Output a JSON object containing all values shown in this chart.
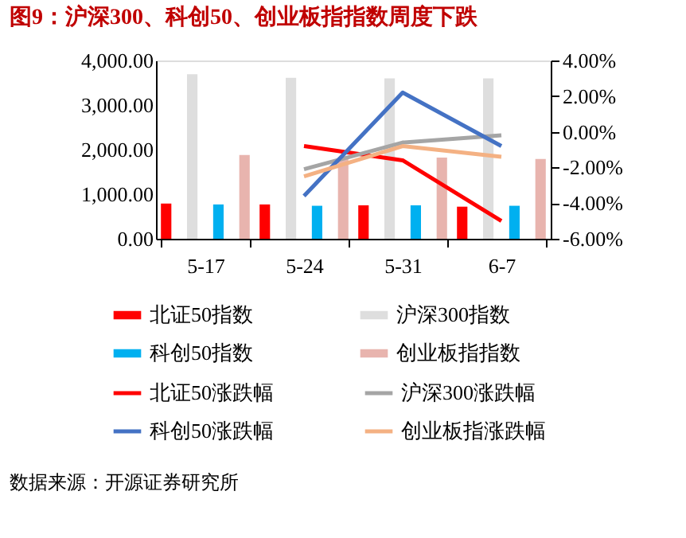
{
  "chart_data": {
    "type": "bar",
    "title": "图9：沪深300、科创50、创业板指指数周度下跌",
    "categories": [
      "5-17",
      "5-24",
      "5-31",
      "6-7"
    ],
    "series": [
      {
        "name": "北证50指数",
        "color": "#ff0000",
        "values": [
          790,
          770,
          750,
          720
        ]
      },
      {
        "name": "沪深300指数",
        "color": "#dedede",
        "values": [
          3690,
          3610,
          3600,
          3600
        ]
      },
      {
        "name": "科创50指数",
        "color": "#00b0f0",
        "values": [
          770,
          740,
          750,
          740
        ]
      },
      {
        "name": "创业板指指数",
        "color": "#e8b4ae",
        "values": [
          1880,
          1830,
          1820,
          1790
        ]
      },
      {
        "name": "北证50涨跌幅",
        "type": "line",
        "axis": "y2",
        "color": "#ff0000",
        "values": [
          null,
          -0.8,
          -1.6,
          -5.0
        ]
      },
      {
        "name": "沪深300涨跌幅",
        "type": "line",
        "axis": "y2",
        "color": "#a5a5a5",
        "values": [
          null,
          -2.1,
          -0.6,
          -0.2
        ]
      },
      {
        "name": "科创50涨跌幅",
        "type": "line",
        "axis": "y2",
        "color": "#4472c4",
        "values": [
          null,
          -3.6,
          2.2,
          -0.8
        ]
      },
      {
        "name": "创业板指涨跌幅",
        "type": "line",
        "axis": "y2",
        "color": "#f4b183",
        "values": [
          null,
          -2.5,
          -0.8,
          -1.4
        ]
      }
    ],
    "ylim": [
      0,
      4000
    ],
    "yticks": [
      {
        "value": 0,
        "label": "0.00"
      },
      {
        "value": 1000,
        "label": "1,000.00"
      },
      {
        "value": 2000,
        "label": "2,000.00"
      },
      {
        "value": 3000,
        "label": "3,000.00"
      },
      {
        "value": 4000,
        "label": "4,000.00"
      }
    ],
    "y2lim": [
      -6,
      4
    ],
    "y2ticks": [
      {
        "value": -6,
        "label": "-6.00%"
      },
      {
        "value": -4,
        "label": "-4.00%"
      },
      {
        "value": -2,
        "label": "-2.00%"
      },
      {
        "value": 0,
        "label": "0.00%"
      },
      {
        "value": 2,
        "label": "2.00%"
      },
      {
        "value": 4,
        "label": "4.00%"
      }
    ],
    "grid": false,
    "legend": "bottom",
    "annotations": [
      "数据来源：开源证券研究所"
    ]
  }
}
